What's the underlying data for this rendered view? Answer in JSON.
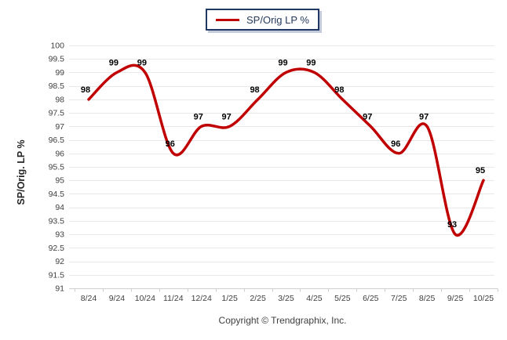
{
  "legend": {
    "label": "SP/Orig LP %"
  },
  "footer": {
    "copyright": "Copyright © Trendgraphix, Inc."
  },
  "colors": {
    "line": "#c00000",
    "grid": "#e8e8e8",
    "axis": "#cfcfcf",
    "tick_label": "#404040",
    "data_label": "#000000",
    "axis_title": "#262626",
    "legend_border": "#1f3864",
    "legend_text": "#253a5e"
  },
  "chart_data": {
    "type": "line",
    "smoothed": true,
    "title": "",
    "categories": [
      "8/24",
      "9/24",
      "10/24",
      "11/24",
      "12/24",
      "1/25",
      "2/25",
      "3/25",
      "4/25",
      "5/25",
      "6/25",
      "7/25",
      "8/25",
      "9/25",
      "10/25"
    ],
    "series": [
      {
        "name": "SP/Orig LP %",
        "values": [
          98,
          99,
          99,
          96,
          97,
          97,
          98,
          99,
          99,
          98,
          97,
          96,
          97,
          93,
          95
        ]
      }
    ],
    "xlabel": "",
    "ylabel": "SP/Orig. LP %",
    "ylim": [
      91,
      100
    ],
    "ytick_step": 0.5,
    "grid": true,
    "grid_axis": "y",
    "legend_position": "top-center",
    "data_labels": true
  }
}
